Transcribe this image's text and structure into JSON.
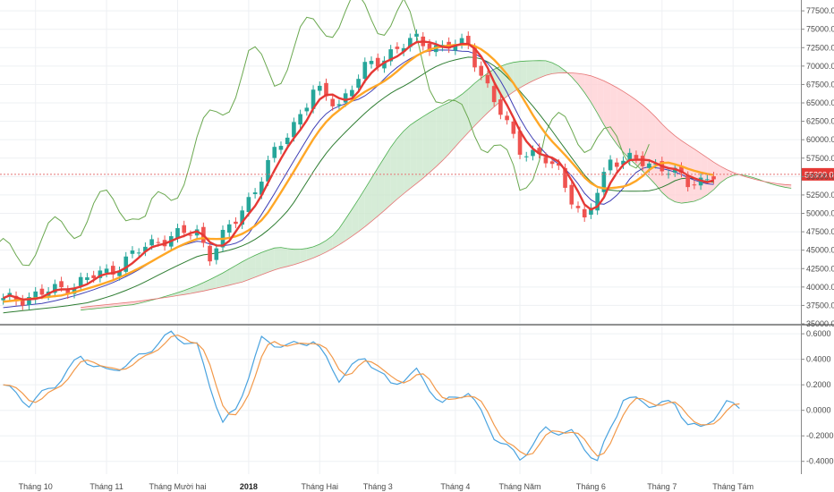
{
  "chart_data": [
    {
      "type": "candlestick",
      "title": "",
      "ylim": [
        35000,
        78000
      ],
      "y_ticks": [
        "77500.0",
        "75000.0",
        "72500.0",
        "70000.0",
        "67500.0",
        "65000.0",
        "62500.0",
        "60000.0",
        "57500.0",
        "55000.0",
        "52500.0",
        "50000.0",
        "47500.0",
        "45000.0",
        "42500.0",
        "40000.0",
        "37500.0",
        "35000.0"
      ],
      "last_price_label": "55300.0",
      "last_price": 55300,
      "x_ticks": [
        {
          "label": "Tháng 10",
          "idx": 5
        },
        {
          "label": "Tháng 11",
          "idx": 16
        },
        {
          "label": "Tháng Mười hai",
          "idx": 27
        },
        {
          "label": "2018",
          "idx": 38
        },
        {
          "label": "Tháng Hai",
          "idx": 49
        },
        {
          "label": "Tháng 3",
          "idx": 58
        },
        {
          "label": "Tháng 4",
          "idx": 70
        },
        {
          "label": "Tháng Năm",
          "idx": 80
        },
        {
          "label": "Tháng 6",
          "idx": 91
        },
        {
          "label": "Tháng 7",
          "idx": 102
        },
        {
          "label": "Tháng Tám",
          "idx": 113
        }
      ],
      "total_slots": 124,
      "price_anchors": [
        [
          0,
          38000
        ],
        [
          8,
          39500
        ],
        [
          16,
          42000
        ],
        [
          24,
          46500
        ],
        [
          30,
          47500
        ],
        [
          32,
          44500
        ],
        [
          36,
          49000
        ],
        [
          42,
          58000
        ],
        [
          48,
          66500
        ],
        [
          52,
          65000
        ],
        [
          56,
          69500
        ],
        [
          60,
          72000
        ],
        [
          64,
          73500
        ],
        [
          68,
          72500
        ],
        [
          72,
          73000
        ],
        [
          76,
          65000
        ],
        [
          80,
          59000
        ],
        [
          86,
          56000
        ],
        [
          90,
          48500
        ],
        [
          94,
          57500
        ],
        [
          98,
          57000
        ],
        [
          102,
          56500
        ],
        [
          106,
          54000
        ],
        [
          110,
          55300
        ]
      ],
      "colors": {
        "up": "#26a69a",
        "down": "#ef5350",
        "fast_ma": "#e53935",
        "slow_ma": "#ffa726",
        "tenkan": "#3f3fb5",
        "kijun_green": "#2e7d32",
        "chikou": "#6aa84f",
        "cloud_bull": "#c8e6c9",
        "cloud_bear": "#ffcdd2",
        "osc_fast": "#4aa3df",
        "osc_slow": "#f2994a",
        "last_price": "#e57373"
      }
    },
    {
      "type": "line",
      "title": "",
      "ylim": [
        -0.5,
        0.65
      ],
      "y_ticks": [
        "0.6000",
        "0.4000",
        "0.2000",
        "0.0000",
        "-0.2000",
        "-0.4000"
      ],
      "osc_anchors": [
        [
          0,
          0.2
        ],
        [
          4,
          0.05
        ],
        [
          8,
          0.2
        ],
        [
          12,
          0.42
        ],
        [
          16,
          0.3
        ],
        [
          20,
          0.38
        ],
        [
          26,
          0.6
        ],
        [
          30,
          0.5
        ],
        [
          34,
          -0.1
        ],
        [
          36,
          0.0
        ],
        [
          40,
          0.55
        ],
        [
          44,
          0.5
        ],
        [
          48,
          0.55
        ],
        [
          52,
          0.25
        ],
        [
          56,
          0.42
        ],
        [
          60,
          0.2
        ],
        [
          64,
          0.3
        ],
        [
          68,
          0.05
        ],
        [
          72,
          0.15
        ],
        [
          76,
          -0.2
        ],
        [
          80,
          -0.38
        ],
        [
          84,
          -0.15
        ],
        [
          88,
          -0.18
        ],
        [
          92,
          -0.4
        ],
        [
          96,
          0.1
        ],
        [
          100,
          0.05
        ],
        [
          104,
          0.05
        ],
        [
          106,
          -0.1
        ],
        [
          108,
          -0.15
        ],
        [
          112,
          0.05
        ],
        [
          114,
          0.03
        ]
      ]
    }
  ]
}
